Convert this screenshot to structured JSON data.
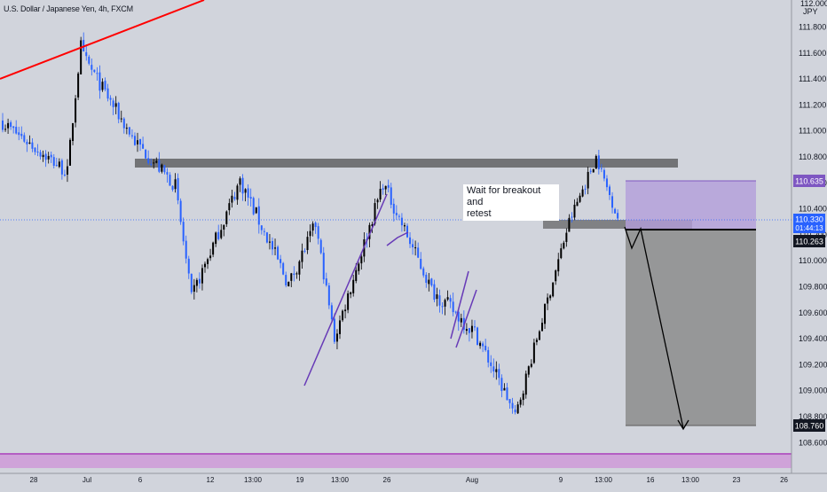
{
  "header": {
    "title": "U.S. Dollar / Japanese Yen, 4h, FXCM"
  },
  "axis": {
    "currency": "JPY",
    "top_clipped_label": "112.000",
    "price_ticks": [
      "111.800",
      "111.600",
      "111.400",
      "111.200",
      "111.000",
      "110.800",
      "110.600",
      "110.400",
      "110.200",
      "110.000",
      "109.800",
      "109.600",
      "109.400",
      "109.200",
      "109.000",
      "108.800",
      "108.600"
    ],
    "time_ticks": [
      "28",
      "Jul",
      "6",
      "12",
      "13:00",
      "19",
      "13:00",
      "26",
      "Aug",
      "9",
      "13:00",
      "16",
      "13:00",
      "23",
      "26"
    ],
    "badges": {
      "target_price": "110.635",
      "current_price": "110.330",
      "countdown": "01:44:13",
      "entry_price": "110.263",
      "stop_price": "108.760"
    }
  },
  "annotation": {
    "text_line1": "Wait for breakout and",
    "text_line2": "retest"
  },
  "colors": {
    "background": "#d1d4dc",
    "bull": "#000000",
    "bear": "#2962ff",
    "trendline": "#ff0000",
    "channel": "#673ab7",
    "zone": "#4a4a4a",
    "profit_zone": "#b39ddb",
    "loss_zone": "#8c8c8c",
    "support_band": "#ce93d8",
    "price_badge_target": "#7e57c2",
    "price_badge_current": "#2962ff"
  },
  "chart_data": {
    "type": "candlestick",
    "symbol": "USDJPY",
    "timeframe": "4h",
    "ylim": [
      108.55,
      112.0
    ],
    "resistance_zone": [
      110.76,
      110.84
    ],
    "retest_zone": [
      110.25,
      110.33
    ],
    "support_band": [
      108.53,
      108.65
    ],
    "trade_setup": {
      "entry": 110.263,
      "target": 110.635,
      "stop": 108.76
    },
    "waves": [
      {
        "n": 25,
        "start": 111.08,
        "end": 110.68,
        "vol": 0.07
      },
      {
        "n": 5,
        "start": 110.7,
        "end": 111.66,
        "vol": 0.06
      },
      {
        "n": 20,
        "start": 111.6,
        "end": 110.92,
        "vol": 0.07
      },
      {
        "n": 15,
        "start": 110.92,
        "end": 110.58,
        "vol": 0.07
      },
      {
        "n": 6,
        "start": 110.58,
        "end": 109.72,
        "vol": 0.05
      },
      {
        "n": 18,
        "start": 109.72,
        "end": 110.62,
        "vol": 0.07
      },
      {
        "n": 18,
        "start": 110.62,
        "end": 109.82,
        "vol": 0.08
      },
      {
        "n": 10,
        "start": 109.82,
        "end": 110.28,
        "vol": 0.07
      },
      {
        "n": 7,
        "start": 110.28,
        "end": 109.4,
        "vol": 0.06
      },
      {
        "n": 18,
        "start": 109.4,
        "end": 110.6,
        "vol": 0.07
      },
      {
        "n": 18,
        "start": 110.6,
        "end": 109.78,
        "vol": 0.07
      },
      {
        "n": 16,
        "start": 109.78,
        "end": 109.45,
        "vol": 0.08
      },
      {
        "n": 12,
        "start": 109.45,
        "end": 108.95,
        "vol": 0.07
      },
      {
        "n": 3,
        "start": 108.95,
        "end": 108.8,
        "vol": 0.05
      },
      {
        "n": 12,
        "start": 108.8,
        "end": 109.7,
        "vol": 0.06
      },
      {
        "n": 8,
        "start": 109.7,
        "end": 110.3,
        "vol": 0.06
      },
      {
        "n": 10,
        "start": 110.3,
        "end": 110.8,
        "vol": 0.06
      },
      {
        "n": 8,
        "start": 110.8,
        "end": 110.33,
        "vol": 0.05
      }
    ]
  }
}
